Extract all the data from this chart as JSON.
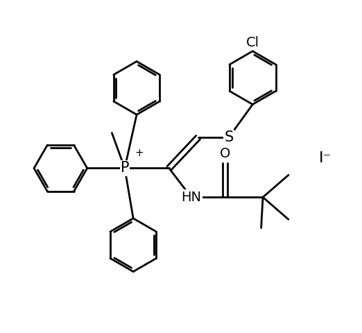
{
  "bg_color": "#ffffff",
  "line_color": "#000000",
  "line_width": 2.0,
  "font_size": 14,
  "figsize": [
    5.22,
    4.8
  ],
  "dpi": 100,
  "xlim": [
    0.0,
    10.5
  ],
  "ylim": [
    0.5,
    10.0
  ]
}
